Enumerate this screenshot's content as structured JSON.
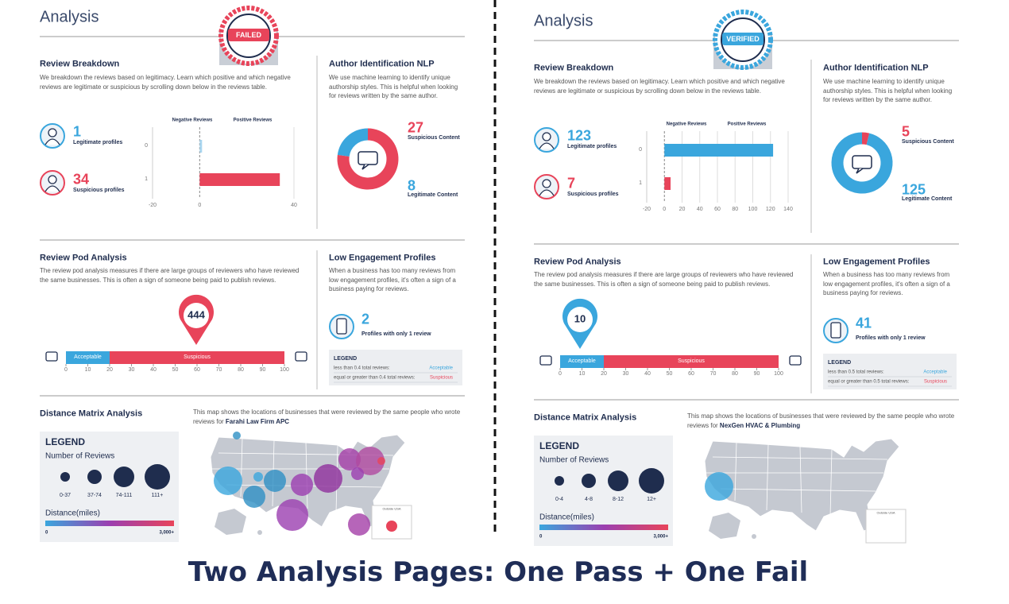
{
  "title": "Two Analysis Pages: One Pass + One Fail",
  "pages": [
    {
      "heading": "Analysis",
      "stamp": "FAILED",
      "stamp_color": "#e8445a",
      "review_breakdown": {
        "title": "Review Breakdown",
        "text": "We breakdown the reviews based on legitimacy. Learn which positive and which negative reviews are legitimate or suspicious by scrolling down below in the reviews table.",
        "legitimate": {
          "value": 1,
          "label": "Legitimate profiles"
        },
        "suspicious": {
          "value": 34,
          "label": "Suspicious profiles"
        },
        "chart": {
          "type": "bar",
          "legend": [
            "Negative Reviews",
            "Positive Reviews"
          ],
          "categories": [
            "0",
            "1"
          ],
          "values": [
            1,
            34
          ],
          "colors": [
            "#a9d6f0",
            "#e8445a"
          ],
          "xlim": [
            -20,
            40
          ],
          "xticks": [
            -20,
            0,
            40
          ]
        }
      },
      "author_nlp": {
        "title": "Author Identification NLP",
        "text": "We use machine learning to identify unique authorship styles. This is helpful when looking for reviews written by the same author.",
        "chart": {
          "type": "donut",
          "categories": [
            "Suspicious Content",
            "Legitimate Content"
          ],
          "values": [
            27,
            8
          ],
          "colors": [
            "#e8445a",
            "#3aa6dd"
          ]
        }
      },
      "review_pod": {
        "title": "Review Pod Analysis",
        "text": "The review pod analysis measures if there are large groups of reviewers who have reviewed the same businesses. This is often a sign of someone being paid to publish reviews.",
        "pin": 444,
        "chart": {
          "type": "stacked_bar",
          "series": [
            {
              "name": "Acceptable",
              "value": 20,
              "color": "#3aa6dd"
            },
            {
              "name": "Suspicious",
              "value": 80,
              "color": "#e8445a"
            }
          ],
          "xlim": [
            0,
            100
          ],
          "xticks": [
            0,
            10,
            20,
            30,
            40,
            50,
            60,
            70,
            80,
            90,
            100
          ]
        }
      },
      "low_engagement": {
        "title": "Low Engagement Profiles",
        "text": "When a business has too many reviews from low engagement profiles, it's often a sign of a business paying for reviews.",
        "value": 2,
        "label": "Profiles with only 1 review",
        "legend": {
          "title": "LEGEND",
          "rows": [
            [
              "less than 0.4 total reviews:",
              "Acceptable"
            ],
            [
              "equal or greater than 0.4 total reviews:",
              "Suspicious"
            ]
          ]
        }
      },
      "distance": {
        "title": "Distance Matrix Analysis",
        "text": "This map shows the locations of businesses that were reviewed by the same people who wrote reviews for",
        "business": "Farahi Law Firm APC",
        "legend_title": "LEGEND",
        "size_title": "Number of Reviews",
        "sizes": [
          "0-37",
          "37-74",
          "74-111",
          "111+"
        ],
        "color_title": "Distance(miles)",
        "color_range": [
          "0",
          "3,000+"
        ],
        "outside": "Outside USA"
      }
    },
    {
      "heading": "Analysis",
      "stamp": "VERIFIED",
      "stamp_color": "#3aa6dd",
      "review_breakdown": {
        "title": "Review Breakdown",
        "text": "We breakdown the reviews based on legitimacy. Learn which positive and which negative reviews are legitimate or suspicious by scrolling down below in the reviews table.",
        "legitimate": {
          "value": 123,
          "label": "Legitimate profiles"
        },
        "suspicious": {
          "value": 7,
          "label": "Suspicious profiles"
        },
        "chart": {
          "type": "bar",
          "legend": [
            "Negative Reviews",
            "Positive Reviews"
          ],
          "categories": [
            "0",
            "1"
          ],
          "values": [
            123,
            7
          ],
          "colors": [
            "#3aa6dd",
            "#e8445a"
          ],
          "xlim": [
            -20,
            140
          ],
          "xticks": [
            -20,
            0,
            20,
            40,
            60,
            80,
            100,
            120,
            140
          ]
        }
      },
      "author_nlp": {
        "title": "Author Identification NLP",
        "text": "We use machine learning to identify unique authorship styles. This is helpful when looking for reviews written by the same author.",
        "chart": {
          "type": "donut",
          "categories": [
            "Suspicious Content",
            "Legitimate Content"
          ],
          "values": [
            5,
            125
          ],
          "colors": [
            "#e8445a",
            "#3aa6dd"
          ]
        }
      },
      "review_pod": {
        "title": "Review Pod Analysis",
        "text": "The review pod analysis measures if there are large groups of reviewers who have reviewed the same businesses. This is often a sign of someone being paid to publish reviews.",
        "pin": 10,
        "chart": {
          "type": "stacked_bar",
          "series": [
            {
              "name": "Acceptable",
              "value": 20,
              "color": "#3aa6dd"
            },
            {
              "name": "Suspicious",
              "value": 80,
              "color": "#e8445a"
            }
          ],
          "xlim": [
            0,
            100
          ],
          "xticks": [
            0,
            10,
            20,
            30,
            40,
            50,
            60,
            70,
            80,
            90,
            100
          ]
        }
      },
      "low_engagement": {
        "title": "Low Engagement Profiles",
        "text": "When a business has too many reviews from low engagement profiles, it's often a sign of a business paying for reviews.",
        "value": 41,
        "label": "Profiles with only 1 review",
        "legend": {
          "title": "LEGEND",
          "rows": [
            [
              "less than 0.5 total reviews:",
              "Acceptable"
            ],
            [
              "equal or greater than 0.5 total reviews:",
              "Suspicious"
            ]
          ]
        }
      },
      "distance": {
        "title": "Distance Matrix Analysis",
        "text": "This map shows the locations of businesses that were reviewed by the same people who wrote reviews for",
        "business": "NexGen HVAC & Plumbing",
        "legend_title": "LEGEND",
        "size_title": "Number of Reviews",
        "sizes": [
          "0-4",
          "4-8",
          "8-12",
          "12+"
        ],
        "color_title": "Distance(miles)",
        "color_range": [
          "0",
          "3,000+"
        ],
        "outside": "Outside USA"
      }
    }
  ]
}
